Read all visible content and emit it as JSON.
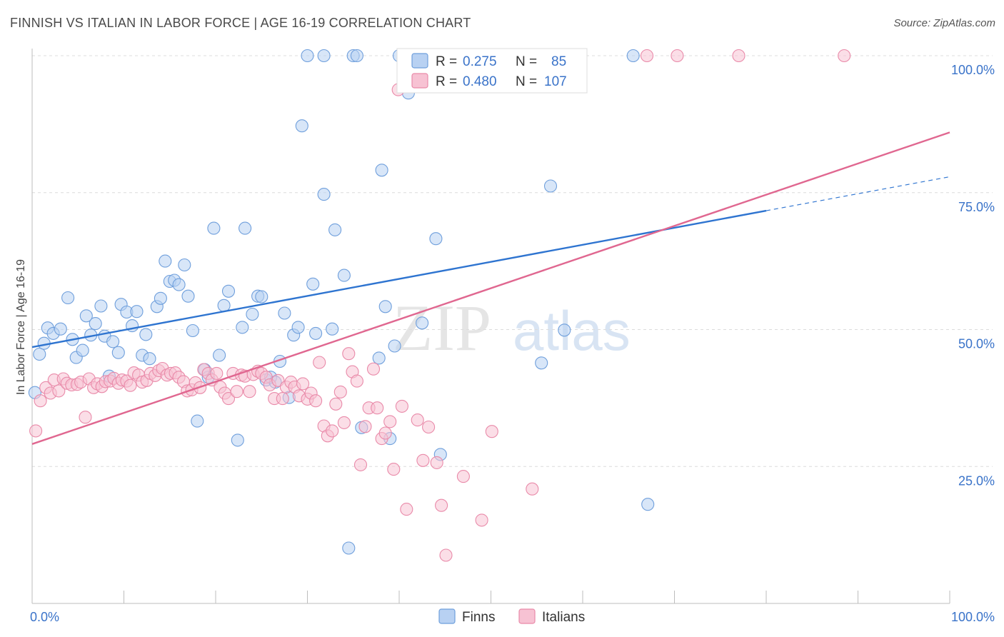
{
  "header": {
    "title": "FINNISH VS ITALIAN IN LABOR FORCE | AGE 16-19 CORRELATION CHART",
    "source": "Source: ZipAtlas.com"
  },
  "watermark": {
    "zip": "ZIP",
    "atlas": "atlas"
  },
  "legend_stats": [
    {
      "r_label": "R =",
      "r_value": "0.275",
      "n_label": "N =",
      "n_value": "85"
    },
    {
      "r_label": "R =",
      "r_value": "0.480",
      "n_label": "N =",
      "n_value": "107"
    }
  ],
  "colors": {
    "finns_fill": "#b8d1f2",
    "finns_stroke": "#6f9fdc",
    "finns_line": "#2e74d0",
    "italians_fill": "#f7c2d3",
    "italians_stroke": "#e98aa9",
    "italians_line": "#e06790",
    "value_text": "#3a73c9",
    "grid": "#dcdcdc"
  },
  "chart_data": {
    "type": "scatter",
    "title": "FINNISH VS ITALIAN IN LABOR FORCE | AGE 16-19 CORRELATION CHART",
    "xlabel": "",
    "ylabel": "In Labor Force | Age 16-19",
    "xlim": [
      0,
      100
    ],
    "ylim": [
      0,
      100
    ],
    "x_tick_labels": [
      "0.0%",
      "100.0%"
    ],
    "y_ticks": [
      {
        "value": 25,
        "label": "25.0%"
      },
      {
        "value": 50,
        "label": "50.0%"
      },
      {
        "value": 75,
        "label": "75.0%"
      },
      {
        "value": 100,
        "label": "100.0%"
      }
    ],
    "grid": true,
    "legend_position": "bottom",
    "series": [
      {
        "name": "Finns",
        "r": 0.275,
        "n": 85,
        "trend": {
          "x0": 0,
          "y0": 46.8,
          "x1": 80,
          "y1": 71.7,
          "dashed_to_x": 100,
          "dashed_to_y": 77.9
        },
        "points": [
          [
            0.3,
            38.5
          ],
          [
            0.8,
            45.5
          ],
          [
            1.3,
            47.5
          ],
          [
            1.7,
            50.3
          ],
          [
            2.3,
            49.3
          ],
          [
            3.1,
            50.1
          ],
          [
            3.9,
            55.8
          ],
          [
            4.4,
            48.2
          ],
          [
            4.8,
            44.9
          ],
          [
            5.5,
            46.2
          ],
          [
            5.9,
            52.5
          ],
          [
            6.4,
            49.0
          ],
          [
            6.9,
            51.1
          ],
          [
            7.5,
            54.3
          ],
          [
            7.9,
            48.8
          ],
          [
            8.4,
            41.5
          ],
          [
            8.8,
            47.8
          ],
          [
            9.4,
            45.8
          ],
          [
            9.7,
            54.6
          ],
          [
            10.3,
            53.2
          ],
          [
            10.9,
            50.7
          ],
          [
            11.4,
            53.3
          ],
          [
            12.0,
            45.3
          ],
          [
            12.4,
            49.1
          ],
          [
            12.8,
            44.7
          ],
          [
            13.6,
            54.2
          ],
          [
            14.0,
            55.7
          ],
          [
            14.5,
            62.5
          ],
          [
            15.0,
            58.8
          ],
          [
            15.5,
            59.0
          ],
          [
            16.0,
            58.2
          ],
          [
            16.6,
            61.8
          ],
          [
            17.0,
            56.1
          ],
          [
            17.5,
            49.8
          ],
          [
            18.0,
            33.3
          ],
          [
            18.8,
            42.7
          ],
          [
            19.2,
            41.3
          ],
          [
            19.8,
            68.5
          ],
          [
            20.4,
            45.3
          ],
          [
            20.9,
            54.4
          ],
          [
            21.4,
            57.0
          ],
          [
            22.4,
            29.8
          ],
          [
            22.9,
            50.4
          ],
          [
            23.2,
            68.5
          ],
          [
            24.0,
            52.8
          ],
          [
            24.6,
            56.1
          ],
          [
            25.0,
            56.0
          ],
          [
            25.5,
            40.8
          ],
          [
            26.0,
            41.3
          ],
          [
            26.5,
            40.4
          ],
          [
            27.0,
            44.2
          ],
          [
            27.5,
            53.0
          ],
          [
            28.0,
            37.6
          ],
          [
            28.5,
            49.0
          ],
          [
            29.0,
            50.4
          ],
          [
            29.4,
            87.2
          ],
          [
            30.0,
            100.0
          ],
          [
            30.6,
            58.3
          ],
          [
            30.9,
            49.3
          ],
          [
            31.8,
            100.0
          ],
          [
            31.8,
            74.7
          ],
          [
            32.7,
            50.1
          ],
          [
            33.0,
            68.2
          ],
          [
            34.0,
            59.9
          ],
          [
            34.5,
            10.1
          ],
          [
            35.0,
            100.0
          ],
          [
            35.4,
            100.0
          ],
          [
            35.9,
            32.1
          ],
          [
            37.8,
            44.8
          ],
          [
            38.1,
            79.1
          ],
          [
            38.5,
            54.2
          ],
          [
            39.0,
            30.1
          ],
          [
            39.5,
            47.0
          ],
          [
            40.0,
            100.0
          ],
          [
            41.0,
            93.2
          ],
          [
            42.5,
            51.2
          ],
          [
            44.0,
            66.6
          ],
          [
            44.5,
            27.2
          ],
          [
            51.6,
            100.0
          ],
          [
            52.9,
            100.0
          ],
          [
            55.5,
            43.9
          ],
          [
            56.5,
            76.2
          ],
          [
            58.0,
            49.9
          ],
          [
            65.5,
            100.0
          ],
          [
            67.1,
            18.1
          ]
        ]
      },
      {
        "name": "Italians",
        "r": 0.48,
        "n": 107,
        "trend": {
          "x0": 0,
          "y0": 29.1,
          "x1": 100,
          "y1": 86.0
        },
        "points": [
          [
            0.4,
            31.5
          ],
          [
            0.9,
            37.0
          ],
          [
            1.5,
            39.4
          ],
          [
            2.0,
            38.4
          ],
          [
            2.4,
            40.8
          ],
          [
            2.9,
            38.8
          ],
          [
            3.4,
            41.0
          ],
          [
            3.8,
            40.2
          ],
          [
            4.3,
            39.9
          ],
          [
            4.9,
            40.0
          ],
          [
            5.3,
            40.4
          ],
          [
            5.8,
            34.0
          ],
          [
            6.2,
            41.0
          ],
          [
            6.7,
            39.4
          ],
          [
            7.1,
            40.1
          ],
          [
            7.6,
            39.6
          ],
          [
            8.0,
            40.5
          ],
          [
            8.5,
            40.6
          ],
          [
            8.9,
            41.1
          ],
          [
            9.4,
            40.2
          ],
          [
            9.8,
            40.8
          ],
          [
            10.3,
            40.6
          ],
          [
            10.7,
            39.8
          ],
          [
            11.1,
            42.1
          ],
          [
            11.6,
            41.7
          ],
          [
            12.0,
            40.4
          ],
          [
            12.5,
            40.7
          ],
          [
            12.9,
            42.0
          ],
          [
            13.4,
            41.6
          ],
          [
            13.8,
            42.5
          ],
          [
            14.2,
            42.9
          ],
          [
            14.7,
            41.7
          ],
          [
            15.1,
            42.0
          ],
          [
            15.6,
            42.1
          ],
          [
            16.0,
            41.3
          ],
          [
            16.5,
            40.5
          ],
          [
            16.9,
            38.8
          ],
          [
            17.4,
            39.0
          ],
          [
            17.8,
            40.3
          ],
          [
            18.3,
            39.4
          ],
          [
            18.7,
            42.7
          ],
          [
            19.2,
            42.0
          ],
          [
            19.6,
            40.8
          ],
          [
            20.1,
            42.0
          ],
          [
            20.5,
            39.5
          ],
          [
            21.0,
            38.4
          ],
          [
            21.4,
            37.4
          ],
          [
            21.9,
            42.0
          ],
          [
            22.3,
            38.7
          ],
          [
            22.8,
            41.7
          ],
          [
            23.2,
            41.5
          ],
          [
            23.7,
            38.7
          ],
          [
            24.1,
            41.8
          ],
          [
            24.6,
            42.4
          ],
          [
            25.0,
            42.0
          ],
          [
            25.5,
            41.3
          ],
          [
            25.9,
            39.9
          ],
          [
            26.4,
            37.4
          ],
          [
            26.8,
            40.7
          ],
          [
            27.3,
            37.4
          ],
          [
            27.7,
            39.5
          ],
          [
            28.2,
            40.4
          ],
          [
            28.6,
            39.5
          ],
          [
            29.1,
            37.9
          ],
          [
            29.5,
            40.1
          ],
          [
            30.0,
            37.3
          ],
          [
            30.4,
            38.4
          ],
          [
            30.9,
            37.0
          ],
          [
            31.3,
            44.0
          ],
          [
            31.8,
            32.4
          ],
          [
            32.2,
            30.6
          ],
          [
            32.7,
            31.5
          ],
          [
            33.1,
            36.4
          ],
          [
            33.6,
            38.6
          ],
          [
            34.0,
            33.0
          ],
          [
            34.5,
            45.6
          ],
          [
            34.9,
            42.3
          ],
          [
            35.4,
            40.6
          ],
          [
            35.8,
            25.3
          ],
          [
            36.3,
            32.3
          ],
          [
            36.7,
            35.7
          ],
          [
            37.2,
            42.8
          ],
          [
            37.6,
            35.7
          ],
          [
            38.1,
            30.1
          ],
          [
            38.5,
            31.1
          ],
          [
            39.0,
            33.2
          ],
          [
            39.4,
            24.5
          ],
          [
            39.9,
            93.8
          ],
          [
            40.3,
            36.0
          ],
          [
            40.8,
            17.2
          ],
          [
            41.2,
            100.0
          ],
          [
            42.0,
            33.5
          ],
          [
            42.6,
            26.1
          ],
          [
            43.2,
            32.2
          ],
          [
            43.7,
            100.0
          ],
          [
            44.1,
            25.7
          ],
          [
            44.6,
            17.9
          ],
          [
            45.1,
            8.8
          ],
          [
            47.0,
            23.2
          ],
          [
            49.0,
            15.2
          ],
          [
            50.1,
            31.4
          ],
          [
            54.5,
            20.9
          ],
          [
            56.4,
            100.0
          ],
          [
            67.0,
            100.0
          ],
          [
            70.3,
            100.0
          ],
          [
            77.0,
            100.0
          ],
          [
            88.5,
            100.0
          ]
        ]
      }
    ]
  }
}
